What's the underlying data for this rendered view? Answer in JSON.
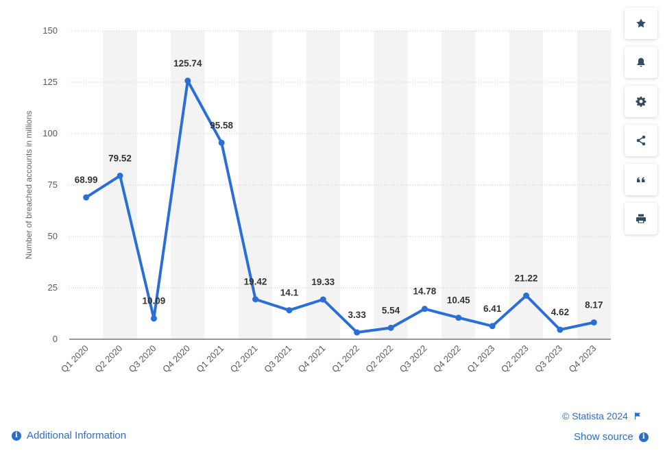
{
  "chart_data": {
    "type": "line",
    "categories": [
      "Q1 2020",
      "Q2 2020",
      "Q3 2020",
      "Q4 2020",
      "Q1 2021",
      "Q2 2021",
      "Q3 2021",
      "Q4 2021",
      "Q1 2022",
      "Q2 2022",
      "Q3 2022",
      "Q4 2022",
      "Q1 2023",
      "Q2 2023",
      "Q3 2023",
      "Q4 2023"
    ],
    "values": [
      68.99,
      79.52,
      10.09,
      125.74,
      95.58,
      19.42,
      14.1,
      19.33,
      3.33,
      5.54,
      14.78,
      10.45,
      6.41,
      21.22,
      4.62,
      8.17
    ],
    "data_labels": [
      "68.99",
      "79.52",
      "10.09",
      "125.74",
      "95.58",
      "19.42",
      "14.1",
      "19.33",
      "3.33",
      "5.54",
      "14.78",
      "10.45",
      "6.41",
      "21.22",
      "4.62",
      "8.17"
    ],
    "ylabel": "Number of breached accounts in millions",
    "yticks": [
      "0",
      "25",
      "50",
      "75",
      "100",
      "125",
      "150"
    ],
    "ylim": [
      0,
      150
    ],
    "grid": true,
    "line_color": "#2a6fd7",
    "band_color": "#f3f3f3"
  },
  "toolbar": {
    "items": [
      "star-icon",
      "bell-icon",
      "gear-icon",
      "share-icon",
      "quote-icon",
      "print-icon"
    ]
  },
  "footer": {
    "copyright": "© Statista 2024",
    "additional_info": "Additional Information",
    "show_source": "Show source",
    "link_color": "#2a6ecb"
  }
}
